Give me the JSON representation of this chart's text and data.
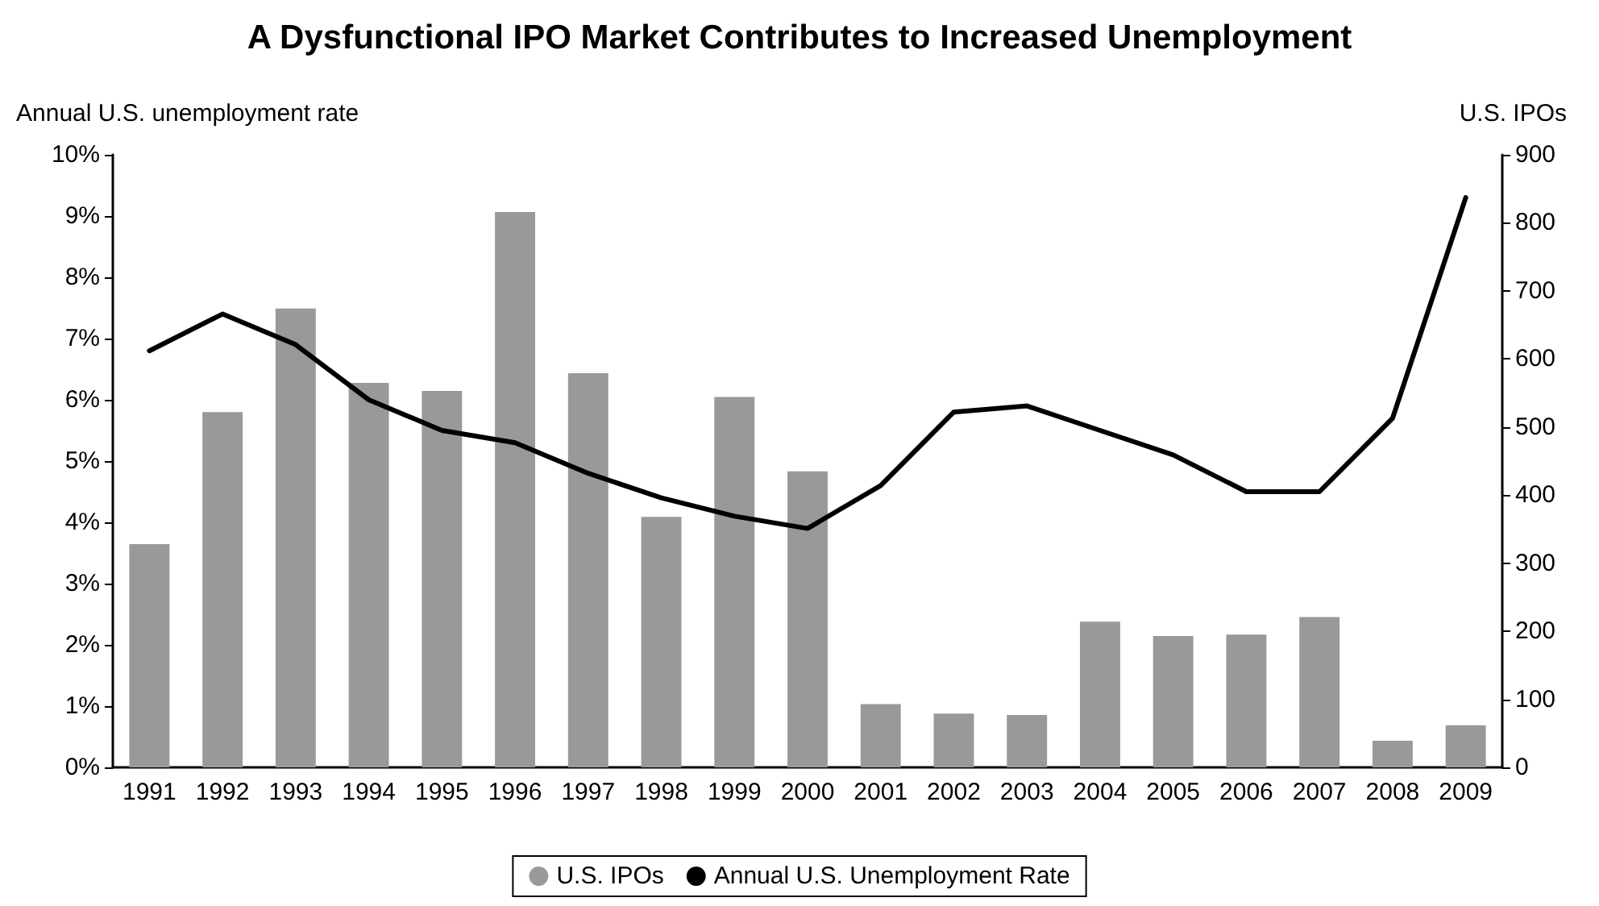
{
  "chart_data": {
    "type": "bar",
    "title": "A Dysfunctional IPO Market Contributes to Increased Unemployment",
    "ylabel": "Annual U.S. unemployment rate",
    "y2label": "U.S. IPOs",
    "categories": [
      "1991",
      "1992",
      "1993",
      "1994",
      "1995",
      "1996",
      "1997",
      "1998",
      "1999",
      "2000",
      "2001",
      "2002",
      "2003",
      "2004",
      "2005",
      "2006",
      "2007",
      "2008",
      "2009"
    ],
    "series": [
      {
        "name": "U.S. IPOs",
        "axis": "y2",
        "color": "#999999",
        "values": [
          328,
          522,
          674,
          565,
          553,
          816,
          579,
          368,
          544,
          435,
          93,
          79,
          77,
          214,
          193,
          195,
          221,
          39,
          62
        ]
      },
      {
        "name": "Annual U.S. Unemployment Rate",
        "type": "line",
        "color": "#000000",
        "marker": "none",
        "line_style": "solid",
        "values": [
          6.8,
          7.4,
          6.9,
          6.0,
          5.5,
          5.3,
          4.8,
          4.4,
          4.1,
          3.9,
          4.6,
          5.8,
          5.9,
          5.5,
          5.1,
          4.5,
          4.5,
          5.7,
          9.3
        ]
      }
    ],
    "ylim": [
      0,
      10
    ],
    "yticks": [
      {
        "value": 0,
        "label": "0%"
      },
      {
        "value": 1,
        "label": "1%"
      },
      {
        "value": 2,
        "label": "2%"
      },
      {
        "value": 3,
        "label": "3%"
      },
      {
        "value": 4,
        "label": "4%"
      },
      {
        "value": 5,
        "label": "5%"
      },
      {
        "value": 6,
        "label": "6%"
      },
      {
        "value": 7,
        "label": "7%"
      },
      {
        "value": 8,
        "label": "8%"
      },
      {
        "value": 9,
        "label": "9%"
      },
      {
        "value": 10,
        "label": "10%"
      }
    ],
    "y2lim": [
      0,
      900
    ],
    "y2ticks": [
      0,
      100,
      200,
      300,
      400,
      500,
      600,
      700,
      800,
      900
    ],
    "grid": false,
    "legend": "bottom"
  }
}
